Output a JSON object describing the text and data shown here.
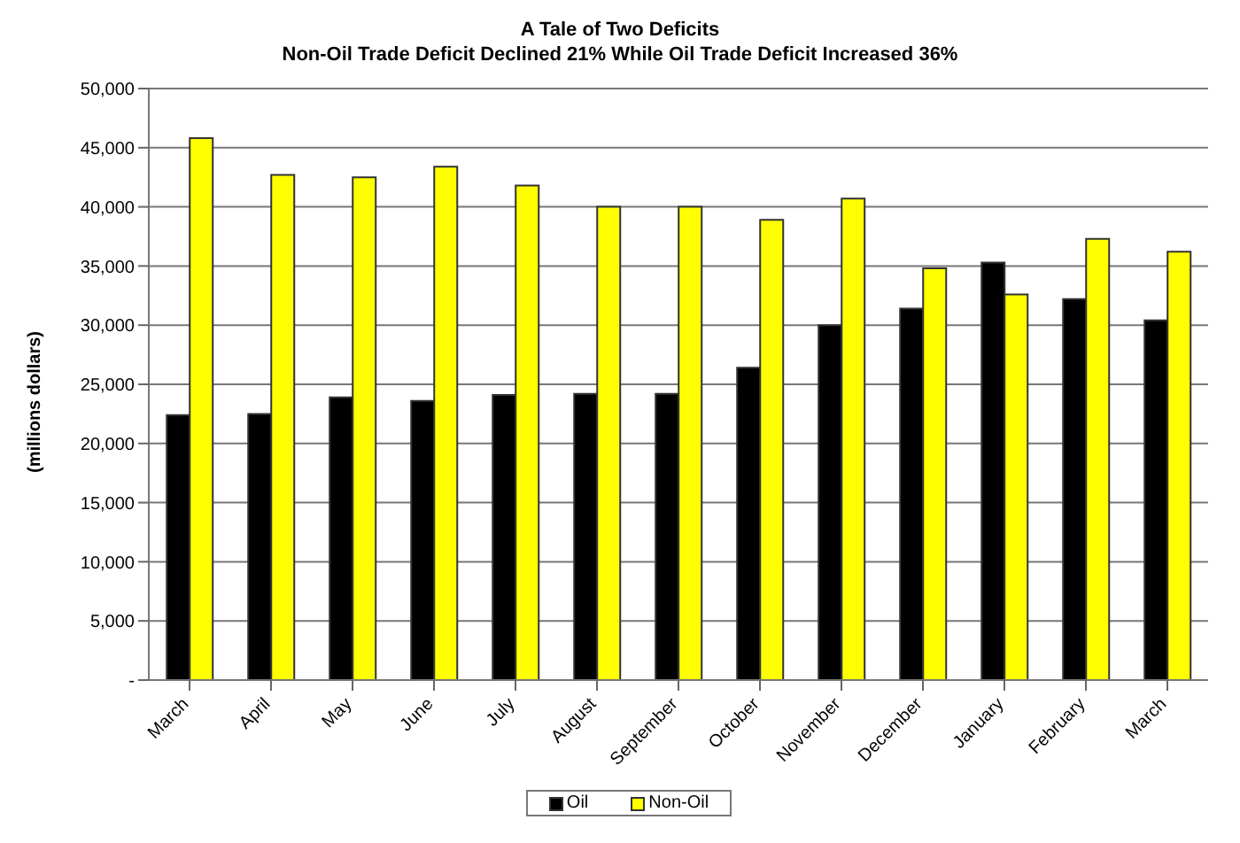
{
  "chart_data": {
    "type": "bar",
    "title": "A Tale of Two Deficits",
    "subtitle": "Non-Oil Trade Deficit Declined 21% While Oil Trade Deficit Increased 36%",
    "ylabel": "(millions dollars)",
    "categories": [
      "March",
      "April",
      "May",
      "June",
      "July",
      "August",
      "September",
      "October",
      "November",
      "December",
      "January",
      "February",
      "March"
    ],
    "series": [
      {
        "name": "Oil",
        "color": "#000000",
        "values": [
          22400,
          22500,
          23900,
          23600,
          24100,
          24200,
          24200,
          26400,
          30000,
          31400,
          35300,
          32200,
          30400
        ]
      },
      {
        "name": "Non-Oil",
        "color": "#ffff00",
        "values": [
          45800,
          42700,
          42500,
          43400,
          41800,
          40000,
          40000,
          38900,
          40700,
          34800,
          32600,
          37300,
          36200
        ]
      }
    ],
    "ylim": [
      0,
      50000
    ],
    "yticks": [
      {
        "value": 0,
        "label": "-"
      },
      {
        "value": 5000,
        "label": "5,000"
      },
      {
        "value": 10000,
        "label": "10,000"
      },
      {
        "value": 15000,
        "label": "15,000"
      },
      {
        "value": 20000,
        "label": "20,000"
      },
      {
        "value": 25000,
        "label": "25,000"
      },
      {
        "value": 30000,
        "label": "30,000"
      },
      {
        "value": 35000,
        "label": "35,000"
      },
      {
        "value": 40000,
        "label": "40,000"
      },
      {
        "value": 45000,
        "label": "45,000"
      },
      {
        "value": 50000,
        "label": "50,000"
      }
    ],
    "grid": "y",
    "legend": "bottom"
  }
}
